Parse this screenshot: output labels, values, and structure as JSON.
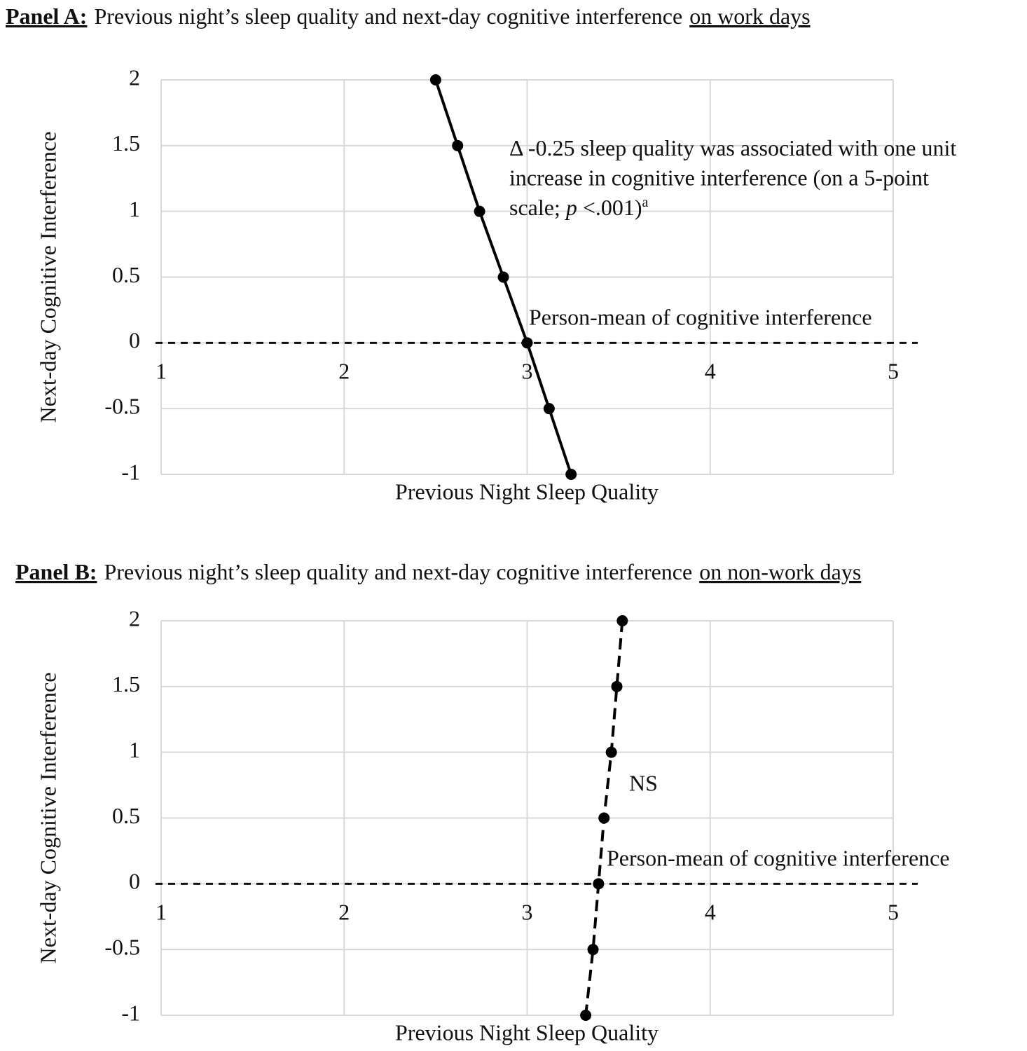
{
  "chart_data": [
    {
      "type": "line",
      "title_label": "Panel A:",
      "title_text": "Previous night’s sleep quality and next-day cognitive interference",
      "title_emphasis": "on work days",
      "x_label": "Previous Night Sleep Quality",
      "y_label": "Next-day Cognitive Interference",
      "xlim": [
        1,
        5
      ],
      "xticks": [
        1,
        2,
        3,
        4,
        5
      ],
      "ylim": [
        -1,
        2
      ],
      "yticks": [
        -1,
        -0.5,
        0,
        0.5,
        1,
        1.5,
        2
      ],
      "grid": true,
      "series": [
        {
          "color": "#000000",
          "line_style": "solid",
          "x": [
            2.5,
            2.62,
            2.74,
            2.87,
            3.0,
            3.12,
            3.24
          ],
          "values": [
            2,
            1.5,
            1,
            0.5,
            0,
            -0.5,
            -1
          ]
        }
      ],
      "reference_line": {
        "y": 0,
        "label": "Person-mean of cognitive interference"
      },
      "annotation_lines": [
        "Δ -0.25 sleep quality was associated with one unit",
        "increase in cognitive interference (on a 5-point",
        "scale; "
      ],
      "annotation_italic": "p",
      "annotation_tail": " <.001)",
      "annotation_superscript": "a"
    },
    {
      "type": "line",
      "title_label": "Panel B:",
      "title_text": "Previous night’s sleep quality and next-day cognitive interference",
      "title_emphasis": "on non-work days",
      "x_label": "Previous Night Sleep Quality",
      "y_label": "Next-day Cognitive Interference",
      "xlim": [
        1,
        5
      ],
      "xticks": [
        1,
        2,
        3,
        4,
        5
      ],
      "ylim": [
        -1,
        2
      ],
      "yticks": [
        -1,
        -0.5,
        0,
        0.5,
        1,
        1.5,
        2
      ],
      "grid": true,
      "series": [
        {
          "color": "#000000",
          "line_style": "dashed",
          "x": [
            3.52,
            3.49,
            3.46,
            3.42,
            3.39,
            3.36,
            3.32
          ],
          "values": [
            2,
            1.5,
            1,
            0.5,
            0,
            -0.5,
            -1
          ]
        }
      ],
      "reference_line": {
        "y": 0,
        "label": "Person-mean of cognitive interference"
      },
      "annotation": "NS"
    }
  ]
}
